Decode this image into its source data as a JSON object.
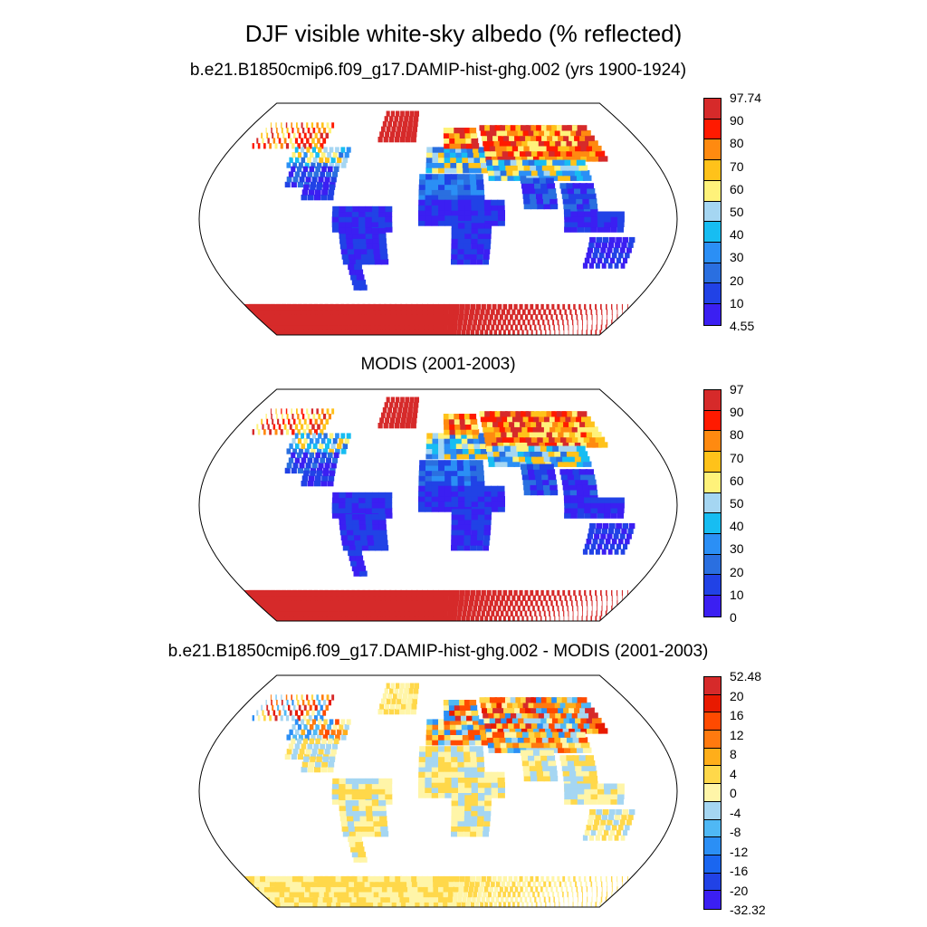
{
  "title": "DJF visible white-sky albedo (% reflected)",
  "panels": [
    {
      "id": "model",
      "title": "b.e21.B1850cmip6.f09_g17.DAMIP-hist-ghg.002 (yrs 1900-1924)",
      "field": "albedo",
      "colors": [
        "#3b1ff2",
        "#2142e6",
        "#2a6fe0",
        "#2b8ff5",
        "#17bdf2",
        "#a5d6f2",
        "#fff27a",
        "#ffc21a",
        "#ff8a10",
        "#ff1a00",
        "#d62a2a"
      ],
      "ticks": [
        "97.74",
        "90",
        "80",
        "70",
        "60",
        "50",
        "40",
        "30",
        "20",
        "10",
        "4.55"
      ]
    },
    {
      "id": "obs",
      "title": "MODIS (2001-2003)",
      "field": "albedo",
      "colors": [
        "#3b1ff2",
        "#2142e6",
        "#2a6fe0",
        "#2b8ff5",
        "#17bdf2",
        "#a5d6f2",
        "#fff27a",
        "#ffc21a",
        "#ff8a10",
        "#ff1a00",
        "#d62a2a"
      ],
      "ticks": [
        "97",
        "90",
        "80",
        "70",
        "60",
        "50",
        "40",
        "30",
        "20",
        "10",
        "0"
      ]
    },
    {
      "id": "diff",
      "title": "b.e21.B1850cmip6.f09_g17.DAMIP-hist-ghg.002 - MODIS (2001-2003)",
      "field": "difference",
      "colors": [
        "#3b1ff2",
        "#2142e6",
        "#1a66f0",
        "#2b8ff5",
        "#4fb8f5",
        "#a5d6f2",
        "#fff5a8",
        "#ffd84a",
        "#ffae1a",
        "#ff7a0f",
        "#ff4a00",
        "#e81a00",
        "#d62a2a"
      ],
      "ticks": [
        "52.48",
        "20",
        "16",
        "12",
        "8",
        "4",
        "0",
        "-4",
        "-8",
        "-12",
        "-16",
        "-20",
        "-32.32"
      ]
    }
  ]
}
